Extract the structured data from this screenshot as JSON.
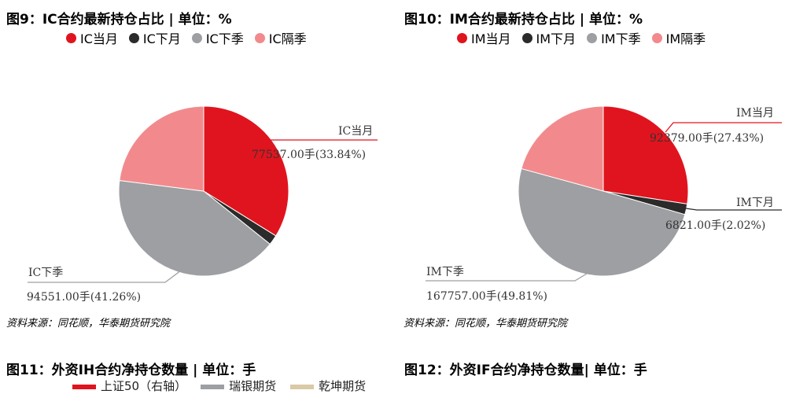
{
  "colors": {
    "current_month": "#e0141e",
    "next_month": "#2b2b2b",
    "next_quarter": "#9d9fa2",
    "far_quarter": "#f28a8d"
  },
  "fig9": {
    "title": "图9：IC合约最新持仓占比 | 单位：%",
    "legend": [
      "IC当月",
      "IC下月",
      "IC下季",
      "IC隔季"
    ],
    "labels": {
      "current_name": "IC当月",
      "current_value": "77537.00手(33.84%)",
      "next_q_name": "IC下季",
      "next_q_value": "94551.00手(41.26%)"
    },
    "source": "资料来源：同花顺，华泰期货研究院"
  },
  "fig10": {
    "title": "图10：IM合约最新持仓占比 | 单位：%",
    "legend": [
      "IM当月",
      "IM下月",
      "IM下季",
      "IM隔季"
    ],
    "labels": {
      "current_name": "IM当月",
      "current_value": "92379.00手(27.43%)",
      "next_m_name": "IM下月",
      "next_m_value": "6821.00手(2.02%)",
      "next_q_name": "IM下季",
      "next_q_value": "167757.00手(49.81%)"
    },
    "source": "资料来源：同花顺，华泰期货研究院"
  },
  "fig11": {
    "title": "图11：外资IH合约净持仓数量 | 单位：手",
    "legend": [
      "上证50（右轴）",
      "瑞银期货",
      "乾坤期货"
    ]
  },
  "fig12": {
    "title": "图12：外资IF合约净持仓数量| 单位：手"
  },
  "chart_data": [
    {
      "type": "pie",
      "title": "图9：IC合约最新持仓占比 | 单位：%",
      "categories": [
        "IC当月",
        "IC下月",
        "IC下季",
        "IC隔季"
      ],
      "values": [
        33.84,
        1.9,
        41.26,
        23.0
      ],
      "counts": {
        "IC当月": 77537,
        "IC下季": 94551
      }
    },
    {
      "type": "pie",
      "title": "图10：IM合约最新持仓占比 | 单位：%",
      "categories": [
        "IM当月",
        "IM下月",
        "IM下季",
        "IM隔季"
      ],
      "values": [
        27.43,
        2.02,
        49.81,
        20.74
      ],
      "counts": {
        "IM当月": 92379,
        "IM下月": 6821,
        "IM下季": 167757
      }
    }
  ]
}
